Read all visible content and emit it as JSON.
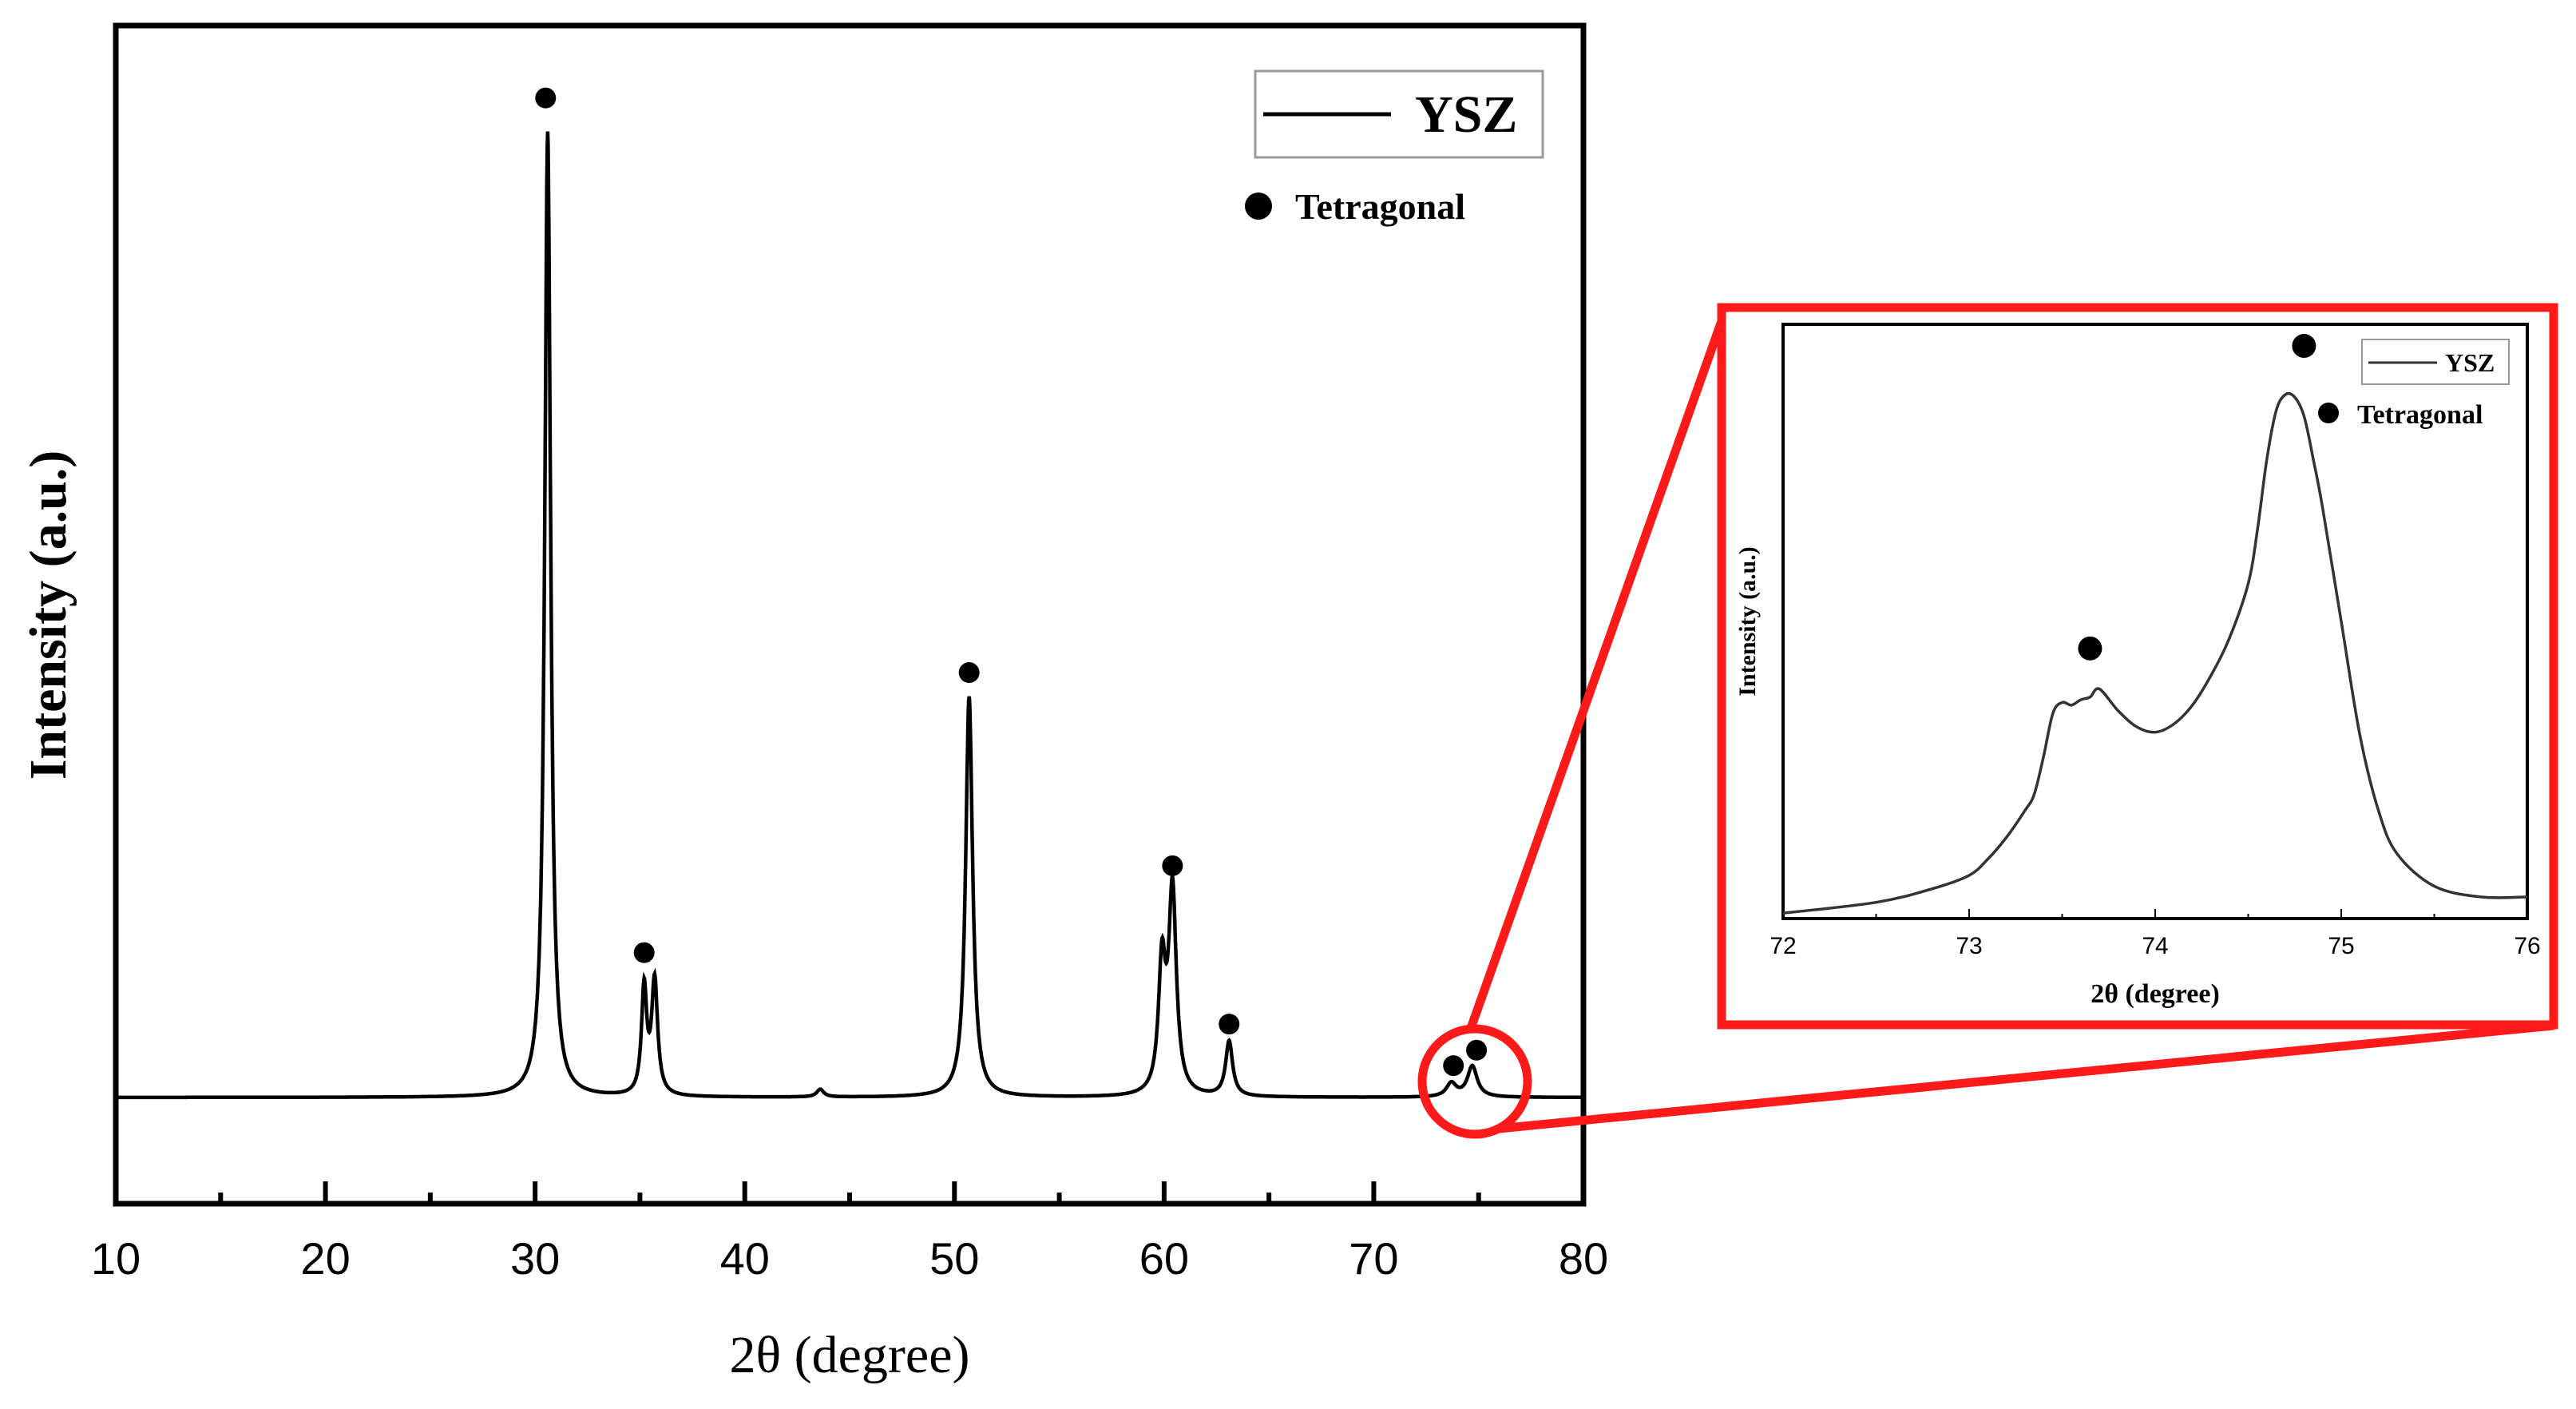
{
  "colors": {
    "curve": "#000000",
    "highlight": "#ff1a1a",
    "inset_curve": "#333333",
    "marker": "#000000"
  },
  "chart_data": [
    {
      "type": "line",
      "title": "",
      "xlabel": "2θ (degree)",
      "ylabel": "Intensity (a.u.)",
      "xlim": [
        10,
        80
      ],
      "ylim": [
        -0.11,
        1.11
      ],
      "xticks": [
        10,
        20,
        30,
        40,
        50,
        60,
        70,
        80
      ],
      "x_minor_step": 5,
      "legend": {
        "position": "top-right",
        "series_label": "YSZ",
        "marker_label": "Tetragonal"
      },
      "series": [
        {
          "name": "YSZ",
          "peaks": [
            {
              "x": 30.6,
              "height": 1.0,
              "width": 0.17
            },
            {
              "x": 35.2,
              "height": 0.11,
              "width": 0.15
            },
            {
              "x": 35.7,
              "height": 0.118,
              "width": 0.17
            },
            {
              "x": 43.6,
              "height": 0.008,
              "width": 0.2
            },
            {
              "x": 50.7,
              "height": 0.415,
              "width": 0.2
            },
            {
              "x": 59.9,
              "height": 0.13,
              "width": 0.2
            },
            {
              "x": 60.4,
              "height": 0.21,
              "width": 0.22
            },
            {
              "x": 63.1,
              "height": 0.057,
              "width": 0.2
            },
            {
              "x": 73.7,
              "height": 0.014,
              "width": 0.28
            },
            {
              "x": 74.7,
              "height": 0.032,
              "width": 0.28
            }
          ]
        }
      ],
      "markers": {
        "label": "Tetragonal",
        "points": [
          {
            "x": 30.5,
            "y": 1.035
          },
          {
            "x": 35.2,
            "y": 0.15
          },
          {
            "x": 50.7,
            "y": 0.44
          },
          {
            "x": 60.4,
            "y": 0.24
          },
          {
            "x": 63.1,
            "y": 0.076
          },
          {
            "x": 73.8,
            "y": 0.033
          },
          {
            "x": 74.9,
            "y": 0.049
          }
        ]
      },
      "highlight": {
        "x": 74.2,
        "y": 0.015,
        "label": "zoom region"
      }
    },
    {
      "type": "line",
      "title": "",
      "xlabel": "2θ (degree)",
      "ylabel": "Intensity (a.u.)",
      "xlim": [
        72,
        76
      ],
      "ylim": [
        0,
        1.1
      ],
      "xticks": [
        72,
        73,
        74,
        75,
        76
      ],
      "x_minor_step": 0.5,
      "legend": {
        "position": "top-right",
        "series_label": "YSZ",
        "marker_label": "Tetragonal"
      },
      "series": [
        {
          "name": "YSZ",
          "x": [
            72.0,
            72.5,
            72.8,
            73.0,
            73.1,
            73.2,
            73.3,
            73.35,
            73.4,
            73.45,
            73.5,
            73.55,
            73.6,
            73.65,
            73.7,
            73.8,
            73.9,
            74.0,
            74.1,
            74.2,
            74.3,
            74.4,
            74.5,
            74.55,
            74.6,
            74.65,
            74.7,
            74.75,
            74.8,
            74.85,
            74.9,
            75.0,
            75.1,
            75.2,
            75.3,
            75.5,
            75.75,
            76.0
          ],
          "values": [
            0.01,
            0.03,
            0.055,
            0.08,
            0.11,
            0.15,
            0.2,
            0.23,
            0.3,
            0.38,
            0.4,
            0.395,
            0.405,
            0.41,
            0.425,
            0.385,
            0.355,
            0.345,
            0.36,
            0.395,
            0.45,
            0.52,
            0.62,
            0.72,
            0.85,
            0.94,
            0.97,
            0.965,
            0.93,
            0.85,
            0.76,
            0.55,
            0.34,
            0.2,
            0.12,
            0.06,
            0.04,
            0.04
          ]
        }
      ],
      "markers": {
        "label": "Tetragonal",
        "points": [
          {
            "x": 73.65,
            "y": 0.5
          },
          {
            "x": 74.8,
            "y": 1.06
          }
        ]
      }
    }
  ]
}
